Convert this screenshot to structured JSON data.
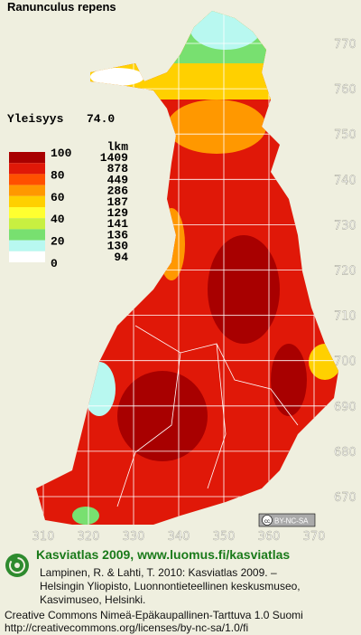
{
  "title": "Ranunculus repens",
  "frequency": {
    "label": "Yleisyys",
    "value": "74.0"
  },
  "legend": {
    "scale": [
      100,
      80,
      60,
      40,
      20,
      0
    ],
    "count_header": "lkm",
    "classes": [
      {
        "color": "#a80000",
        "count": 1409
      },
      {
        "color": "#e01808",
        "count": 878
      },
      {
        "color": "#ff5000",
        "count": 449
      },
      {
        "color": "#ff9800",
        "count": 286
      },
      {
        "color": "#ffd000",
        "count": 187
      },
      {
        "color": "#ffff30",
        "count": 129
      },
      {
        "color": "#c8f040",
        "count": 141
      },
      {
        "color": "#78e070",
        "count": 136
      },
      {
        "color": "#b8f8f0",
        "count": 130
      },
      {
        "color": "#ffffff",
        "count": 94
      }
    ]
  },
  "map": {
    "yticks": [
      770,
      760,
      750,
      740,
      730,
      720,
      710,
      700,
      690,
      680,
      670
    ],
    "xticks": [
      310,
      320,
      330,
      340,
      350,
      360,
      370
    ],
    "badge": "BY-NC-SA"
  },
  "footer": {
    "heading": "Kasviatlas 2009, www.luomus.fi/kasviatlas",
    "citation": [
      "Lampinen, R. & Lahti, T. 2010: Kasviatlas 2009. –",
      "Helsingin Yliopisto, Luonnontieteellinen keskusmuseo,",
      "Kasvimuseo, Helsinki."
    ],
    "license": [
      "Creative Commons Nimeä-Epäkaupallinen-Tarttuva 1.0 Suomi",
      "http://creativecommons.org/licenses/by-nc-sa/1.0/fi"
    ]
  }
}
